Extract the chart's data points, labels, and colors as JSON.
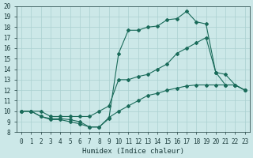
{
  "xlabel": "Humidex (Indice chaleur)",
  "background_color": "#cce8e8",
  "line_color": "#1a6b5a",
  "grid_color": "#aad0d0",
  "xlim": [
    -0.5,
    23.5
  ],
  "ylim": [
    8,
    20
  ],
  "xticks": [
    0,
    1,
    2,
    3,
    4,
    5,
    6,
    7,
    8,
    9,
    10,
    11,
    12,
    13,
    14,
    15,
    16,
    17,
    18,
    19,
    20,
    21,
    22,
    23
  ],
  "yticks": [
    8,
    9,
    10,
    11,
    12,
    13,
    14,
    15,
    16,
    17,
    18,
    19,
    20
  ],
  "line1_x": [
    0,
    1,
    2,
    3,
    4,
    5,
    6,
    7,
    8,
    9,
    10,
    11,
    12,
    13,
    14,
    15,
    16,
    17,
    18,
    19,
    20,
    21,
    22,
    23
  ],
  "line1_y": [
    10,
    10,
    9.5,
    9.2,
    9.2,
    9.0,
    8.8,
    8.5,
    8.5,
    9.4,
    10,
    10.5,
    11,
    11.5,
    11.7,
    12,
    12.2,
    12.4,
    12.5,
    12.5,
    12.5,
    12.5,
    12.5,
    12
  ],
  "line2_x": [
    0,
    1,
    2,
    3,
    4,
    5,
    6,
    7,
    8,
    9,
    10,
    11,
    12,
    13,
    14,
    15,
    16,
    17,
    18,
    19,
    20,
    21,
    22,
    23
  ],
  "line2_y": [
    10,
    10,
    10,
    9.5,
    9.5,
    9.5,
    9.5,
    9.5,
    10,
    10.5,
    13,
    13,
    13.3,
    13.5,
    14,
    14.5,
    15.5,
    16,
    16.5,
    17,
    13.7,
    13.5,
    12.5,
    12
  ],
  "line3_x": [
    0,
    1,
    2,
    3,
    4,
    5,
    6,
    7,
    8,
    9,
    10,
    11,
    12,
    13,
    14,
    15,
    16,
    17,
    18,
    19,
    20,
    21,
    22,
    23
  ],
  "line3_y": [
    10,
    10,
    9.5,
    9.3,
    9.3,
    9.2,
    9.0,
    8.5,
    8.5,
    9.3,
    15.5,
    17.7,
    17.7,
    18.0,
    18.1,
    18.7,
    18.8,
    19.5,
    18.5,
    18.3,
    13.7,
    12.5,
    12.5,
    12
  ]
}
